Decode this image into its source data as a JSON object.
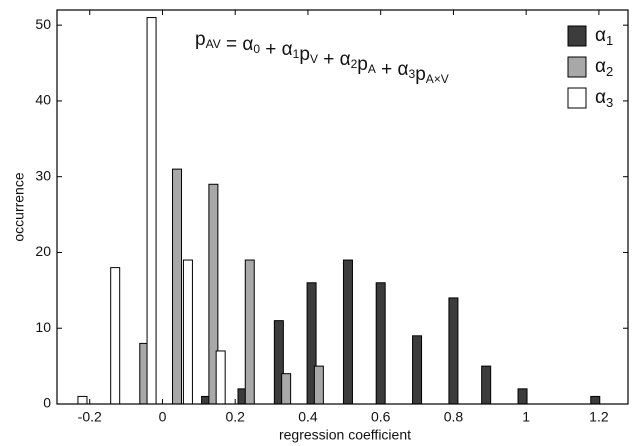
{
  "chart_data": {
    "type": "bar",
    "x_label": "regression coefficient",
    "y_label": "occurrence",
    "annotation": [
      {
        "text": "p",
        "sub": "AV"
      },
      {
        "text": " = α",
        "sub": "0"
      },
      {
        "text": " + α",
        "sub": "1"
      },
      {
        "text": "p",
        "sub": "V"
      },
      {
        "text": " + α",
        "sub": "2"
      },
      {
        "text": "p",
        "sub": "A"
      },
      {
        "text": " + α",
        "sub": "3"
      },
      {
        "text": "p",
        "sub": "A×V"
      }
    ],
    "series": [
      {
        "name": {
          "text": "α",
          "sub": "1"
        },
        "color": "#3c3c3c",
        "x": [
          0.12,
          0.22,
          0.32,
          0.41,
          0.51,
          0.6,
          0.7,
          0.8,
          0.89,
          0.99,
          1.19
        ],
        "values": [
          1,
          2,
          11,
          16,
          19,
          16,
          9,
          14,
          5,
          2,
          1
        ]
      },
      {
        "name": {
          "text": "α",
          "sub": "2"
        },
        "color": "#a8a8a8",
        "x": [
          -0.05,
          0.04,
          0.14,
          0.24,
          0.34,
          0.43
        ],
        "values": [
          8,
          31,
          29,
          19,
          4,
          5
        ]
      },
      {
        "name": {
          "text": "α",
          "sub": "3"
        },
        "color": "#ffffff",
        "x": [
          -0.22,
          -0.13,
          -0.03,
          0.07,
          0.16
        ],
        "values": [
          1,
          18,
          51,
          19,
          7
        ]
      }
    ],
    "xlim": [
      -0.29,
      1.28
    ],
    "ylim": [
      0,
      52
    ],
    "xticks": [
      -0.2,
      0,
      0.2,
      0.4,
      0.6,
      0.8,
      1,
      1.2
    ],
    "yticks": [
      0,
      10,
      20,
      30,
      40,
      50
    ],
    "legend": "upper right"
  }
}
